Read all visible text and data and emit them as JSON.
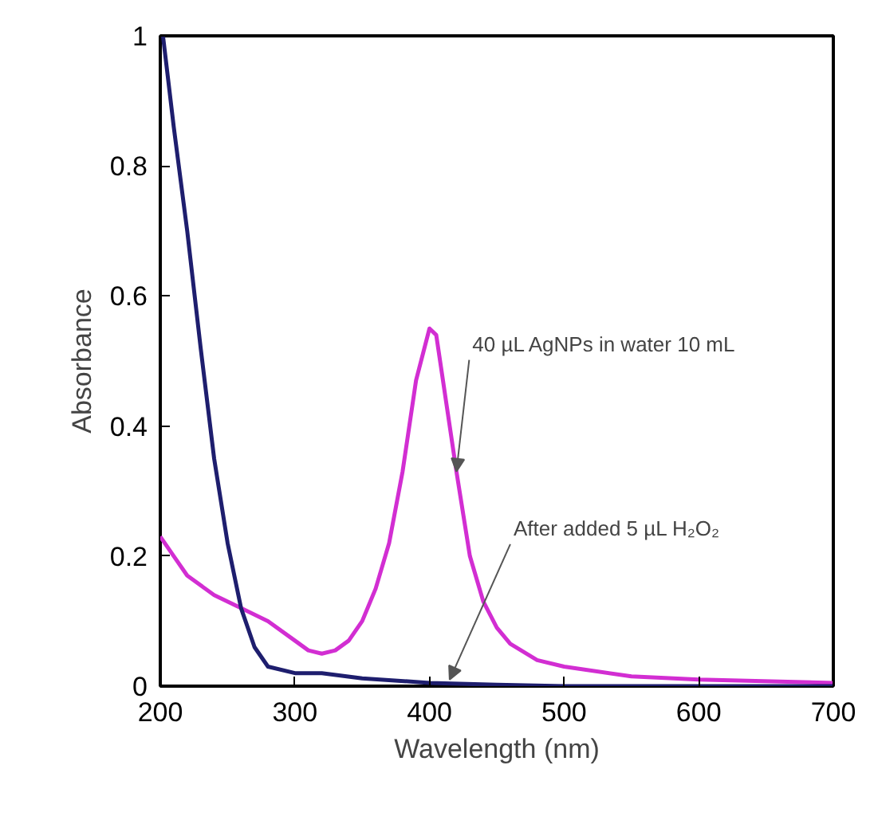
{
  "chart_data": {
    "type": "line",
    "xlabel": "Wavelength (nm)",
    "ylabel": "Absorbance",
    "xlim": [
      200,
      700
    ],
    "ylim": [
      0,
      1
    ],
    "xticks": [
      200,
      300,
      400,
      500,
      600,
      700
    ],
    "yticks": [
      0,
      {
        "value": 0.2,
        "label": "0.2"
      },
      {
        "value": 0.4,
        "label": "0.4"
      },
      {
        "value": 0.6,
        "label": "0.6"
      },
      {
        "value": 0.8,
        "label": "0.8"
      },
      1
    ],
    "grid": false,
    "marker": "none",
    "line_style": "solid",
    "series": [
      {
        "color": "#d22ed2",
        "x": [
          200,
          210,
          220,
          240,
          260,
          280,
          300,
          310,
          320,
          330,
          340,
          350,
          360,
          370,
          380,
          390,
          400,
          405,
          410,
          420,
          430,
          440,
          450,
          460,
          480,
          500,
          550,
          600,
          700
        ],
        "values": [
          0.23,
          0.2,
          0.17,
          0.14,
          0.12,
          0.1,
          0.07,
          0.055,
          0.05,
          0.055,
          0.07,
          0.1,
          0.15,
          0.22,
          0.33,
          0.47,
          0.55,
          0.54,
          0.47,
          0.33,
          0.2,
          0.13,
          0.09,
          0.065,
          0.04,
          0.03,
          0.015,
          0.01,
          0.005
        ]
      },
      {
        "color": "#1e1e6e",
        "x": [
          202,
          210,
          220,
          230,
          240,
          250,
          260,
          270,
          280,
          300,
          320,
          350,
          400,
          450,
          500,
          600,
          700
        ],
        "values": [
          1.0,
          0.86,
          0.7,
          0.52,
          0.35,
          0.22,
          0.12,
          0.06,
          0.03,
          0.02,
          0.02,
          0.012,
          0.005,
          0.002,
          0,
          0,
          0
        ]
      }
    ],
    "annotations": [
      {
        "text": "40 µL AgNPs in water 10 mL",
        "x": 420,
        "y": 0.33
      },
      {
        "text": "After added 5 µL H₂O₂",
        "x": 415,
        "y": 0.01
      }
    ]
  }
}
